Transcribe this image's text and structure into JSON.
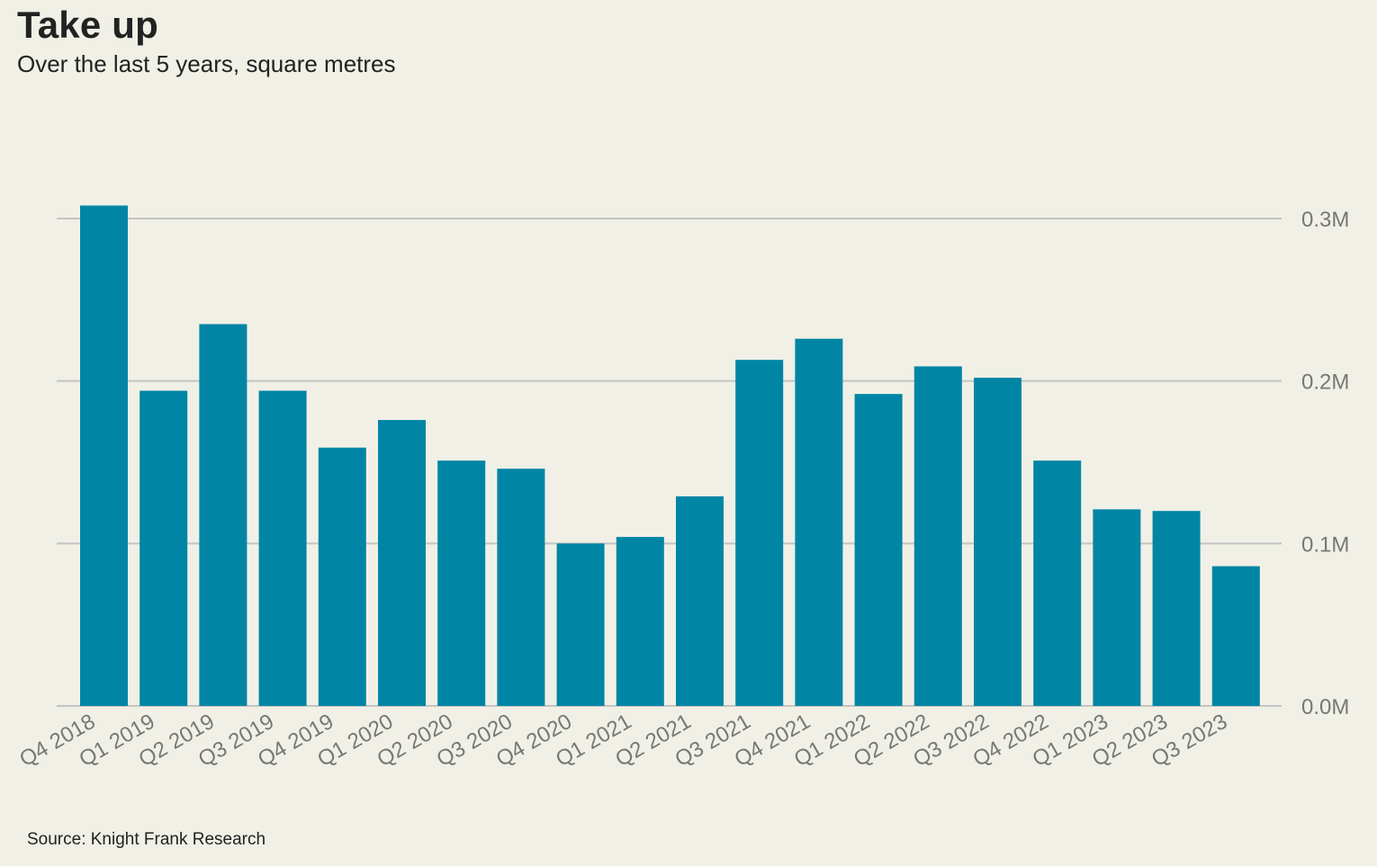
{
  "chart_data": {
    "type": "bar",
    "title": "Take up",
    "subtitle": "Over the last 5 years, square metres",
    "source": "Source: Knight Frank Research",
    "categories": [
      "Q4 2018",
      "Q1 2019",
      "Q2 2019",
      "Q3 2019",
      "Q4 2019",
      "Q1 2020",
      "Q2 2020",
      "Q3 2020",
      "Q4 2020",
      "Q1 2021",
      "Q2 2021",
      "Q3 2021",
      "Q4 2021",
      "Q1 2022",
      "Q2 2022",
      "Q3 2022",
      "Q4 2022",
      "Q1 2023",
      "Q2 2023",
      "Q3 2023"
    ],
    "values": [
      308000,
      194000,
      235000,
      194000,
      159000,
      176000,
      151000,
      146000,
      100000,
      104000,
      129000,
      213000,
      226000,
      192000,
      209000,
      202000,
      151000,
      121000,
      120000,
      86000
    ],
    "ylim": [
      0,
      300000
    ],
    "yticks": [
      0,
      100000,
      200000,
      300000
    ],
    "ytick_labels": [
      "0.0M",
      "0.1M",
      "0.2M",
      "0.3M"
    ],
    "grid": true,
    "bar_color": "#0085a5",
    "xlabel": "",
    "ylabel": ""
  }
}
